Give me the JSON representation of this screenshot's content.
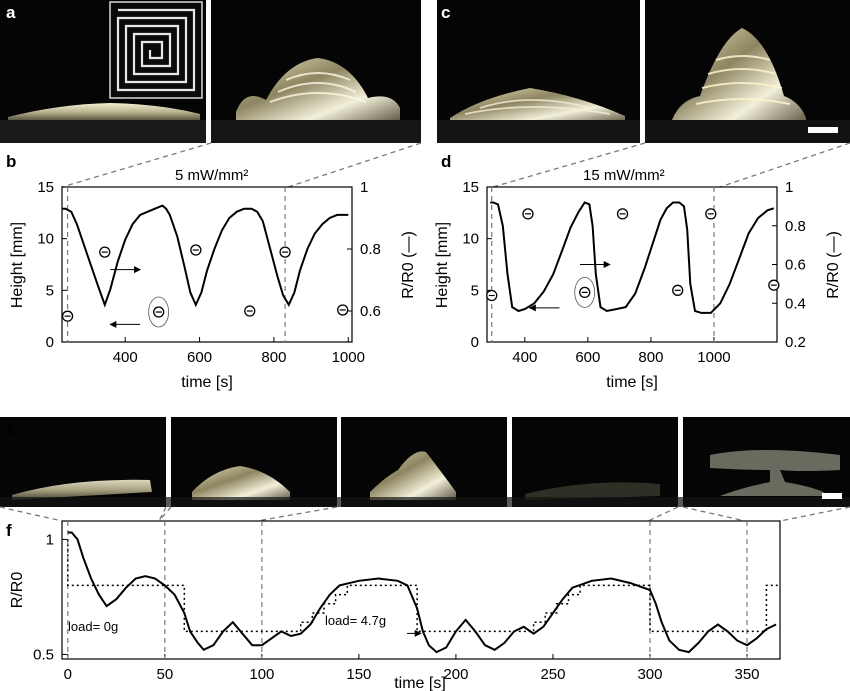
{
  "panel_labels": [
    "a",
    "b",
    "c",
    "d",
    "e",
    "f"
  ],
  "colors": {
    "curve": "#000000",
    "photo_bg": "#050505",
    "film": "#cfc9a8",
    "dashed": "#7a7a7a"
  },
  "chart_data": [
    {
      "id": "b",
      "type": "line",
      "title": "5 mW/mm²",
      "xlabel": "time [s]",
      "ylabel_left": "Height [mm]",
      "ylabel_right": "R/R0 (—)",
      "xlim": [
        230,
        1010
      ],
      "xticks": [
        400,
        600,
        800,
        1000
      ],
      "ylim_left": [
        0,
        15
      ],
      "yticks_left": [
        0,
        5,
        10,
        15
      ],
      "ylim_right": [
        0.5,
        1.0
      ],
      "yticks_right": [
        0.6,
        0.8,
        1
      ],
      "series": [
        {
          "axis": "right",
          "style": "solid-line",
          "x": [
            230,
            240,
            255,
            270,
            290,
            310,
            330,
            345,
            360,
            380,
            400,
            420,
            440,
            460,
            480,
            500,
            510,
            520,
            540,
            560,
            575,
            590,
            605,
            620,
            640,
            660,
            680,
            700,
            720,
            740,
            755,
            770,
            790,
            810,
            825,
            840,
            855,
            870,
            890,
            910,
            930,
            950,
            970,
            990,
            1000
          ],
          "y": [
            0.93,
            0.93,
            0.92,
            0.88,
            0.81,
            0.74,
            0.67,
            0.62,
            0.67,
            0.76,
            0.83,
            0.88,
            0.91,
            0.92,
            0.93,
            0.94,
            0.93,
            0.91,
            0.84,
            0.74,
            0.66,
            0.62,
            0.66,
            0.73,
            0.8,
            0.86,
            0.9,
            0.92,
            0.93,
            0.93,
            0.92,
            0.89,
            0.8,
            0.71,
            0.65,
            0.62,
            0.66,
            0.73,
            0.8,
            0.85,
            0.88,
            0.9,
            0.91,
            0.91,
            0.91
          ]
        },
        {
          "axis": "left",
          "style": "circle-marker",
          "x": [
            245,
            345,
            490,
            590,
            735,
            830,
            985
          ],
          "y": [
            2.5,
            8.7,
            2.9,
            8.9,
            3.0,
            8.7,
            3.1
          ]
        }
      ],
      "annotations": {
        "dashed_markers_x": [
          245,
          830
        ],
        "arrow_right_at": [
          360,
          7
        ],
        "arrow_left_at": [
          440,
          1.7
        ]
      }
    },
    {
      "id": "d",
      "type": "line",
      "title": "15 mW/mm²",
      "xlabel": "time [s]",
      "ylabel_left": "Height [mm]",
      "ylabel_right": "R/R0 (—)",
      "xlim": [
        280,
        1200
      ],
      "xticks": [
        400,
        600,
        800,
        1000
      ],
      "ylim_left": [
        0,
        15
      ],
      "yticks_left": [
        0,
        5,
        10,
        15
      ],
      "ylim_right": [
        0.2,
        1.0
      ],
      "yticks_right": [
        0.2,
        0.4,
        0.6,
        0.8,
        1
      ],
      "series": [
        {
          "axis": "right",
          "style": "solid-line",
          "x": [
            290,
            300,
            315,
            330,
            345,
            360,
            380,
            400,
            430,
            460,
            490,
            520,
            545,
            570,
            590,
            605,
            615,
            625,
            640,
            660,
            690,
            720,
            750,
            780,
            810,
            830,
            850,
            870,
            890,
            905,
            915,
            925,
            940,
            960,
            990,
            1020,
            1050,
            1080,
            1110,
            1140,
            1170,
            1190
          ],
          "y": [
            0.92,
            0.92,
            0.91,
            0.8,
            0.55,
            0.38,
            0.36,
            0.37,
            0.4,
            0.46,
            0.55,
            0.68,
            0.79,
            0.87,
            0.92,
            0.91,
            0.8,
            0.55,
            0.38,
            0.36,
            0.37,
            0.38,
            0.45,
            0.58,
            0.73,
            0.83,
            0.89,
            0.92,
            0.92,
            0.9,
            0.78,
            0.5,
            0.36,
            0.35,
            0.35,
            0.4,
            0.5,
            0.63,
            0.76,
            0.84,
            0.88,
            0.89
          ]
        },
        {
          "axis": "left",
          "style": "circle-marker",
          "x": [
            295,
            410,
            590,
            710,
            885,
            990,
            1190
          ],
          "y": [
            4.5,
            12.4,
            4.8,
            12.4,
            5.0,
            12.4,
            5.5
          ]
        }
      ],
      "annotations": {
        "dashed_markers_x": [
          295,
          1000
        ],
        "arrow_right_at": [
          575,
          7.5
        ],
        "arrow_left_at": [
          510,
          3.3
        ]
      }
    },
    {
      "id": "f",
      "type": "line",
      "title": "",
      "xlabel": "time [s]",
      "ylabel": "R/R0",
      "xlim": [
        -3,
        367
      ],
      "xticks": [
        0,
        50,
        100,
        150,
        200,
        250,
        300,
        350
      ],
      "ylim": [
        0.48,
        1.08
      ],
      "yticks": [
        0.5,
        1
      ],
      "series": [
        {
          "style": "solid-line",
          "x": [
            0,
            2,
            5,
            8,
            12,
            16,
            20,
            25,
            30,
            35,
            40,
            45,
            50,
            55,
            60,
            63,
            67,
            70,
            75,
            80,
            85,
            90,
            95,
            100,
            105,
            110,
            115,
            120,
            125,
            130,
            135,
            140,
            150,
            160,
            170,
            175,
            180,
            183,
            186,
            190,
            195,
            200,
            205,
            210,
            215,
            220,
            225,
            230,
            235,
            240,
            245,
            250,
            255,
            260,
            270,
            280,
            290,
            300,
            303,
            306,
            310,
            315,
            320,
            325,
            330,
            335,
            340,
            345,
            350,
            355,
            360,
            365
          ],
          "y": [
            1.03,
            1.03,
            1.0,
            0.92,
            0.83,
            0.76,
            0.71,
            0.74,
            0.79,
            0.83,
            0.84,
            0.83,
            0.8,
            0.76,
            0.68,
            0.6,
            0.55,
            0.52,
            0.54,
            0.6,
            0.64,
            0.59,
            0.54,
            0.54,
            0.57,
            0.6,
            0.58,
            0.59,
            0.63,
            0.7,
            0.76,
            0.8,
            0.82,
            0.83,
            0.82,
            0.8,
            0.7,
            0.6,
            0.54,
            0.51,
            0.53,
            0.6,
            0.65,
            0.6,
            0.54,
            0.52,
            0.55,
            0.6,
            0.62,
            0.59,
            0.62,
            0.68,
            0.74,
            0.79,
            0.82,
            0.83,
            0.81,
            0.78,
            0.72,
            0.64,
            0.56,
            0.52,
            0.51,
            0.55,
            0.6,
            0.63,
            0.6,
            0.56,
            0.54,
            0.57,
            0.61,
            0.63
          ]
        },
        {
          "style": "dotted-step",
          "x": [
            0,
            0,
            30,
            30,
            60,
            60,
            120,
            120,
            126,
            126,
            132,
            132,
            138,
            138,
            144,
            144,
            180,
            180,
            240,
            240,
            246,
            246,
            252,
            252,
            258,
            258,
            264,
            264,
            300,
            300,
            360,
            360,
            367
          ],
          "y": [
            1.0,
            0.8,
            0.8,
            0.8,
            0.8,
            0.6,
            0.6,
            0.64,
            0.64,
            0.68,
            0.68,
            0.72,
            0.72,
            0.76,
            0.76,
            0.8,
            0.8,
            0.6,
            0.6,
            0.64,
            0.64,
            0.68,
            0.68,
            0.72,
            0.72,
            0.76,
            0.76,
            0.8,
            0.8,
            0.6,
            0.6,
            0.8,
            0.8
          ]
        }
      ],
      "annotations": {
        "dashed_markers_x": [
          0,
          50,
          100,
          300,
          350
        ],
        "load_labels": [
          "load= 0g",
          "load= 4.7g"
        ]
      }
    }
  ]
}
